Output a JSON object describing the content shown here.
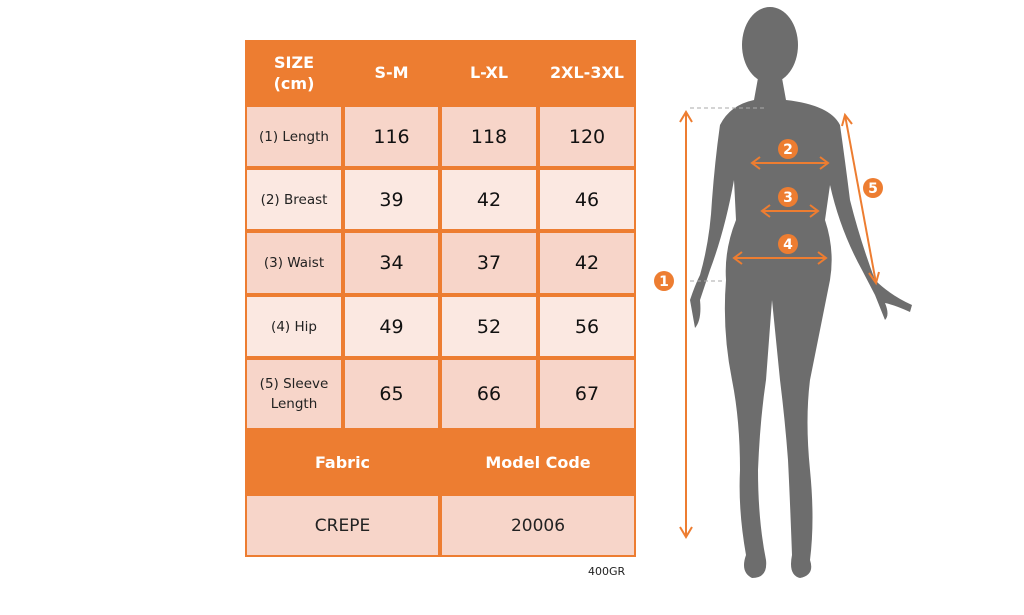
{
  "table": {
    "header": [
      "SIZE\n(cm)",
      "S-M",
      "L-XL",
      "2XL-3XL"
    ],
    "header_line1": "SIZE",
    "header_line2": "(cm)",
    "sizes": [
      "S-M",
      "L-XL",
      "2XL-3XL"
    ],
    "rows": [
      {
        "label": "(1) Length",
        "values": [
          "116",
          "118",
          "120"
        ]
      },
      {
        "label": "(2) Breast",
        "values": [
          "39",
          "42",
          "46"
        ]
      },
      {
        "label": "(3) Waist",
        "values": [
          "34",
          "37",
          "42"
        ]
      },
      {
        "label": "(4) Hip",
        "values": [
          "49",
          "52",
          "56"
        ]
      },
      {
        "label_line1": "(5) Sleeve",
        "label_line2": "Length",
        "values": [
          "65",
          "66",
          "67"
        ]
      }
    ],
    "footer_headers": [
      "Fabric",
      "Model Code"
    ],
    "footer_values": [
      "CREPE",
      "20006"
    ]
  },
  "weight_note": "400GR",
  "figure": {
    "markers": [
      "1",
      "2",
      "3",
      "4",
      "5"
    ]
  },
  "colors": {
    "accent": "#ed7d31",
    "row_dark": "#f7d5c9",
    "row_light": "#fbe8e1",
    "silhouette": "#6d6d6d"
  }
}
